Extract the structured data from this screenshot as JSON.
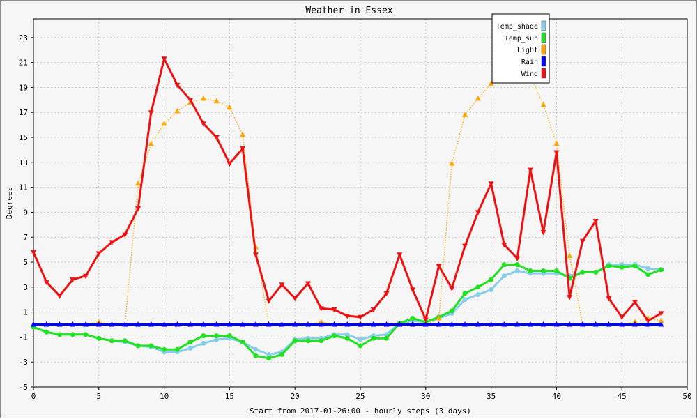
{
  "chart_data": {
    "type": "line",
    "title": "Weather in Essex",
    "xlabel": "Start from 2017-01-26:00 - hourly steps (3 days)",
    "ylabel": "Degrees",
    "xlim": [
      0,
      50
    ],
    "ylim": [
      -5,
      24.5
    ],
    "x_ticks": [
      0,
      5,
      10,
      15,
      20,
      25,
      30,
      35,
      40,
      45,
      50
    ],
    "y_ticks": [
      -5,
      -3,
      -1,
      1,
      3,
      5,
      7,
      9,
      11,
      13,
      15,
      17,
      19,
      21,
      23
    ],
    "grid": true,
    "legend_position": "top-right",
    "series": [
      {
        "name": "Temp_shade",
        "color": "#87ceeb",
        "marker": "circle",
        "style": "solid",
        "values": [
          -0.2,
          -0.6,
          -0.8,
          -0.8,
          -0.8,
          -1.1,
          -1.3,
          -1.4,
          -1.7,
          -1.8,
          -2.2,
          -2.2,
          -1.9,
          -1.5,
          -1.2,
          -1.1,
          -1.4,
          -2.0,
          -2.4,
          -2.2,
          -1.2,
          -1.1,
          -1.1,
          -0.8,
          -0.8,
          -1.2,
          -0.9,
          -0.8,
          0.1,
          0.3,
          0.2,
          0.5,
          0.9,
          2.0,
          2.4,
          2.8,
          3.9,
          4.3,
          4.1,
          4.1,
          4.1,
          3.9,
          4.2,
          4.2,
          4.8,
          4.8,
          4.8,
          4.5,
          4.4
        ]
      },
      {
        "name": "Temp_sun",
        "color": "#22e022",
        "marker": "circle",
        "style": "solid",
        "values": [
          -0.2,
          -0.6,
          -0.8,
          -0.8,
          -0.8,
          -1.1,
          -1.3,
          -1.3,
          -1.7,
          -1.7,
          -2.0,
          -2.0,
          -1.4,
          -0.9,
          -0.9,
          -0.9,
          -1.4,
          -2.5,
          -2.7,
          -2.4,
          -1.3,
          -1.3,
          -1.3,
          -0.9,
          -1.1,
          -1.7,
          -1.1,
          -1.1,
          0.1,
          0.5,
          0.2,
          0.6,
          1.1,
          2.5,
          3.0,
          3.6,
          4.8,
          4.8,
          4.3,
          4.3,
          4.3,
          3.7,
          4.2,
          4.2,
          4.7,
          4.6,
          4.7,
          4.0,
          4.4
        ]
      },
      {
        "name": "Light",
        "color": "#ffa500",
        "marker": "triangle-up",
        "style": "dotted",
        "values": [
          0,
          0,
          0,
          0,
          0,
          0.2,
          0,
          0,
          11.3,
          14.5,
          16.1,
          17.1,
          17.8,
          18.1,
          17.9,
          17.4,
          15.2,
          6.2,
          0,
          0,
          0,
          0,
          0.2,
          0,
          0,
          0.1,
          0,
          0,
          0,
          0,
          0,
          0.5,
          12.9,
          16.8,
          18.1,
          19.3,
          19.8,
          20.5,
          19.9,
          17.6,
          14.5,
          5.5,
          0,
          0,
          0,
          0,
          0.2,
          0.5,
          0.3
        ]
      },
      {
        "name": "Rain",
        "color": "#0000ff",
        "marker": "triangle-up",
        "style": "solid",
        "values": [
          0,
          0,
          0,
          0,
          0,
          0,
          0,
          0,
          0,
          0,
          0,
          0,
          0,
          0,
          0,
          0,
          0,
          0,
          0,
          0,
          0,
          0,
          0,
          0,
          0,
          0,
          0,
          0,
          0,
          0,
          0,
          0,
          0,
          0,
          0,
          0,
          0,
          0,
          0,
          0,
          0,
          0,
          0,
          0,
          0,
          0,
          0,
          0,
          0
        ]
      },
      {
        "name": "Wind",
        "color": "#ee1111",
        "marker": "triangle-down",
        "style": "solid",
        "values": [
          5.8,
          3.4,
          2.3,
          3.6,
          3.9,
          5.7,
          6.6,
          7.2,
          9.3,
          17.0,
          21.3,
          19.2,
          18.0,
          16.1,
          15.0,
          12.9,
          14.1,
          5.6,
          1.9,
          3.2,
          2.1,
          3.3,
          1.3,
          1.2,
          0.7,
          0.6,
          1.2,
          2.5,
          5.6,
          2.8,
          0.4,
          4.7,
          2.9,
          6.3,
          9.0,
          11.3,
          6.4,
          5.3,
          12.4,
          7.4,
          13.8,
          2.2,
          6.7,
          8.3,
          2.1,
          0.6,
          1.8,
          0.3,
          0.9
        ]
      }
    ]
  }
}
